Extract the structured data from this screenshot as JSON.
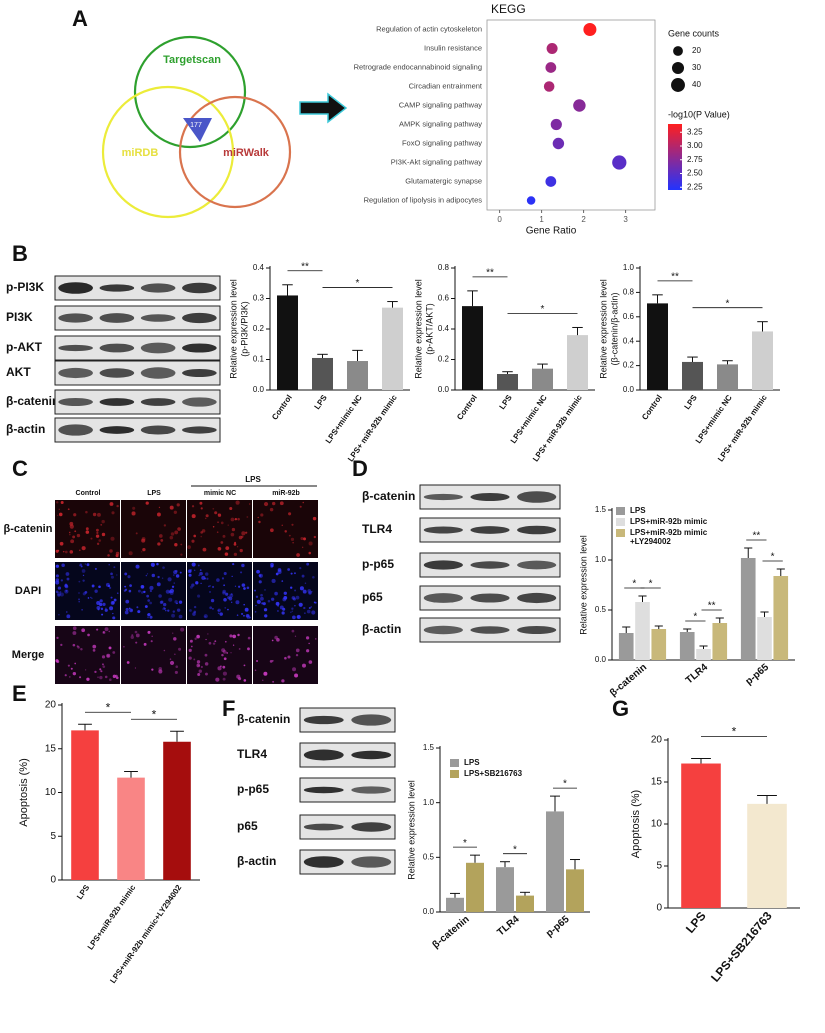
{
  "panel_labels": [
    "A",
    "B",
    "C",
    "D",
    "E",
    "F",
    "G"
  ],
  "venn": {
    "sets": [
      "Targetscan",
      "miRDB",
      "miRWalk"
    ],
    "overlap": 177
  },
  "blots": [
    {
      "rows": [
        "p-PI3K",
        "PI3K",
        "p-AKT",
        "AKT",
        "β-catenin",
        "β-actin"
      ]
    },
    {
      "rows": [
        "β-catenin",
        "TLR4",
        "p-p65",
        "p65",
        "β-actin"
      ]
    },
    {
      "rows": [
        "β-catenin",
        "TLR4",
        "p-p65",
        "p65",
        "β-actin"
      ]
    }
  ],
  "microscopy": {
    "group": "LPS",
    "columns": [
      "Control",
      "LPS",
      "mimic NC",
      "miR-92b"
    ],
    "rows": [
      "β-catenin",
      "DAPI",
      "Merge"
    ]
  },
  "chart_data": [
    {
      "type": "bubble",
      "title": "KEGG",
      "xlabel": "Gene Ratio",
      "categories": [
        "Regulation of actin cytoskeleton",
        "Insulin resistance",
        "Retrograde endocannabinoid signaling",
        "Circadian entrainment",
        "CAMP signaling pathway",
        "AMPK signaling pathway",
        "FoxO signaling pathway",
        "PI3K-Akt signaling pathway",
        "Glutamatergic synapse",
        "Regulation of lipolysis in adipocytes"
      ],
      "values": [
        2.15,
        1.25,
        1.22,
        1.18,
        1.9,
        1.35,
        1.4,
        2.85,
        1.22,
        0.75
      ],
      "sizes": [
        35,
        25,
        24,
        23,
        32,
        26,
        27,
        42,
        24,
        15
      ],
      "neg_log10_p": [
        3.4,
        2.95,
        2.85,
        2.95,
        2.75,
        2.7,
        2.6,
        2.5,
        2.35,
        2.25
      ],
      "xlim": [
        -0.3,
        3.7
      ],
      "xticks": [
        0,
        1,
        2,
        3
      ],
      "size_legend": {
        "title": "Gene counts",
        "values": [
          20,
          30,
          40
        ]
      },
      "color_legend": {
        "title": "-log10(P Value)",
        "range": [
          2.2,
          3.4
        ],
        "colors": [
          "#2233ff",
          "#ff1f1f"
        ],
        "ticks": [
          2.25,
          {
            "value": 2.5,
            "label": "2.50"
          },
          2.75,
          {
            "value": 3,
            "label": "3.00"
          },
          3.25
        ]
      }
    },
    {
      "type": "bar",
      "ylabel": [
        "Relative expression level",
        "(p-PI3K/PI3K)"
      ],
      "categories": [
        "Control",
        "LPS",
        "LPS+mimic NC",
        "LPS+ miR-92b mimic"
      ],
      "values": [
        0.31,
        0.105,
        0.095,
        0.27
      ],
      "errors": [
        0.035,
        0.012,
        0.035,
        0.02
      ],
      "colors": [
        "#111111",
        "#555555",
        "#8a8a8a",
        "#cfcfcf"
      ],
      "ylim": [
        0,
        0.4
      ],
      "yticks": [
        {
          "value": 0,
          "label": "0.0"
        },
        0.1,
        0.2,
        0.3,
        0.4
      ],
      "significance": [
        {
          "pair": [
            0,
            1
          ],
          "label": "**"
        },
        {
          "pair": [
            1,
            3
          ],
          "label": "*"
        }
      ]
    },
    {
      "type": "bar",
      "ylabel": [
        "Relative expression level",
        "(p-AKT/AKT)"
      ],
      "categories": [
        "Control",
        "LPS",
        "LPS+mimic NC",
        "LPS+ miR-92b mimic"
      ],
      "values": [
        0.55,
        0.105,
        0.14,
        0.36
      ],
      "errors": [
        0.1,
        0.015,
        0.03,
        0.05
      ],
      "colors": [
        "#111111",
        "#555555",
        "#8a8a8a",
        "#cfcfcf"
      ],
      "ylim": [
        0,
        0.8
      ],
      "yticks": [
        {
          "value": 0,
          "label": "0.0"
        },
        0.2,
        0.4,
        0.6,
        0.8
      ],
      "significance": [
        {
          "pair": [
            0,
            1
          ],
          "label": "**"
        },
        {
          "pair": [
            1,
            3
          ],
          "label": "*"
        }
      ]
    },
    {
      "type": "bar",
      "ylabel": [
        "Relative expression level",
        "(β-catenin/β-actin)"
      ],
      "categories": [
        "Control",
        "LPS",
        "LPS+mimic NC",
        "LPS+ miR-92b mimic"
      ],
      "values": [
        0.71,
        0.23,
        0.21,
        0.48
      ],
      "errors": [
        0.07,
        0.04,
        0.03,
        0.08
      ],
      "colors": [
        "#111111",
        "#555555",
        "#8a8a8a",
        "#cfcfcf"
      ],
      "ylim": [
        0,
        1
      ],
      "yticks": [
        {
          "value": 0,
          "label": "0.0"
        },
        0.2,
        0.4,
        0.6,
        0.8,
        {
          "value": 1,
          "label": "1.0"
        }
      ],
      "significance": [
        {
          "pair": [
            0,
            1
          ],
          "label": "**"
        },
        {
          "pair": [
            1,
            3
          ],
          "label": "*"
        }
      ]
    },
    {
      "type": "grouped_bar",
      "ylabel": [
        "Relative expression level"
      ],
      "categories": [
        "β-catenin",
        "TLR4",
        "p-p65"
      ],
      "series": [
        {
          "name": "LPS",
          "color": "#9a9a9a",
          "values": [
            0.27,
            0.28,
            1.02
          ],
          "errors": [
            0.06,
            0.03,
            0.1
          ]
        },
        {
          "name": "LPS+miR-92b mimic",
          "color": "#dedede",
          "values": [
            0.58,
            0.11,
            0.43
          ],
          "errors": [
            0.06,
            0.03,
            0.05
          ]
        },
        {
          "name": "LPS+miR-92b mimic\n+LY294002",
          "color": "#c8b87a",
          "values": [
            0.31,
            0.37,
            0.84
          ],
          "errors": [
            0.03,
            0.05,
            0.07
          ]
        }
      ],
      "ylim": [
        0,
        1.5
      ],
      "yticks": [
        {
          "value": 0,
          "label": "0.0"
        },
        0.5,
        {
          "value": 1,
          "label": "1.0"
        },
        1.5
      ],
      "significance": [
        {
          "category": 0,
          "pair": [
            0,
            1
          ],
          "label": "*"
        },
        {
          "category": 0,
          "pair": [
            1,
            2
          ],
          "label": "*"
        },
        {
          "category": 1,
          "pair": [
            0,
            1
          ],
          "label": "*"
        },
        {
          "category": 1,
          "pair": [
            1,
            2
          ],
          "label": "**"
        },
        {
          "category": 2,
          "pair": [
            0,
            1
          ],
          "label": "**"
        },
        {
          "category": 2,
          "pair": [
            1,
            2
          ],
          "label": "*"
        }
      ]
    },
    {
      "type": "bar",
      "ylabel": [
        "Apoptosis (%)"
      ],
      "categories": [
        "LPS",
        "LPS+miR-92b mimic",
        "LPS+miR-92b mimic+LY294002"
      ],
      "values": [
        17.1,
        11.7,
        15.8
      ],
      "errors": [
        0.7,
        0.7,
        1.2
      ],
      "colors": [
        "#f5403f",
        "#f98585",
        "#a50d0d"
      ],
      "ylim": [
        0,
        20
      ],
      "yticks": [
        0,
        5,
        10,
        15,
        20
      ],
      "significance": [
        {
          "pair": [
            0,
            1
          ],
          "label": "*"
        },
        {
          "pair": [
            1,
            2
          ],
          "label": "*"
        }
      ]
    },
    {
      "type": "grouped_bar",
      "ylabel": [
        "Relative expression level"
      ],
      "categories": [
        "β-catenin",
        "TLR4",
        "p-p65"
      ],
      "series": [
        {
          "name": "LPS",
          "color": "#9a9a9a",
          "values": [
            0.13,
            0.41,
            0.92
          ],
          "errors": [
            0.04,
            0.05,
            0.14
          ]
        },
        {
          "name": "LPS+SB216763",
          "color": "#b3a35c",
          "values": [
            0.45,
            0.15,
            0.39
          ],
          "errors": [
            0.07,
            0.03,
            0.09
          ]
        }
      ],
      "ylim": [
        0,
        1.5
      ],
      "yticks": [
        {
          "value": 0,
          "label": "0.0"
        },
        0.5,
        {
          "value": 1,
          "label": "1.0"
        },
        1.5
      ],
      "significance": [
        {
          "category": 0,
          "pair": [
            0,
            1
          ],
          "label": "*"
        },
        {
          "category": 1,
          "pair": [
            0,
            1
          ],
          "label": "*"
        },
        {
          "category": 2,
          "pair": [
            0,
            1
          ],
          "label": "*"
        }
      ]
    },
    {
      "type": "bar",
      "ylabel": [
        "Apoptosis (%)"
      ],
      "categories": [
        "LPS",
        "LPS+SB216763"
      ],
      "values": [
        17.2,
        12.4
      ],
      "errors": [
        0.6,
        1.0
      ],
      "colors": [
        "#f5403f",
        "#f3e8cf"
      ],
      "ylim": [
        0,
        20
      ],
      "yticks": [
        0,
        5,
        10,
        15,
        20
      ],
      "significance": [
        {
          "pair": [
            0,
            1
          ],
          "label": "*"
        }
      ]
    }
  ]
}
